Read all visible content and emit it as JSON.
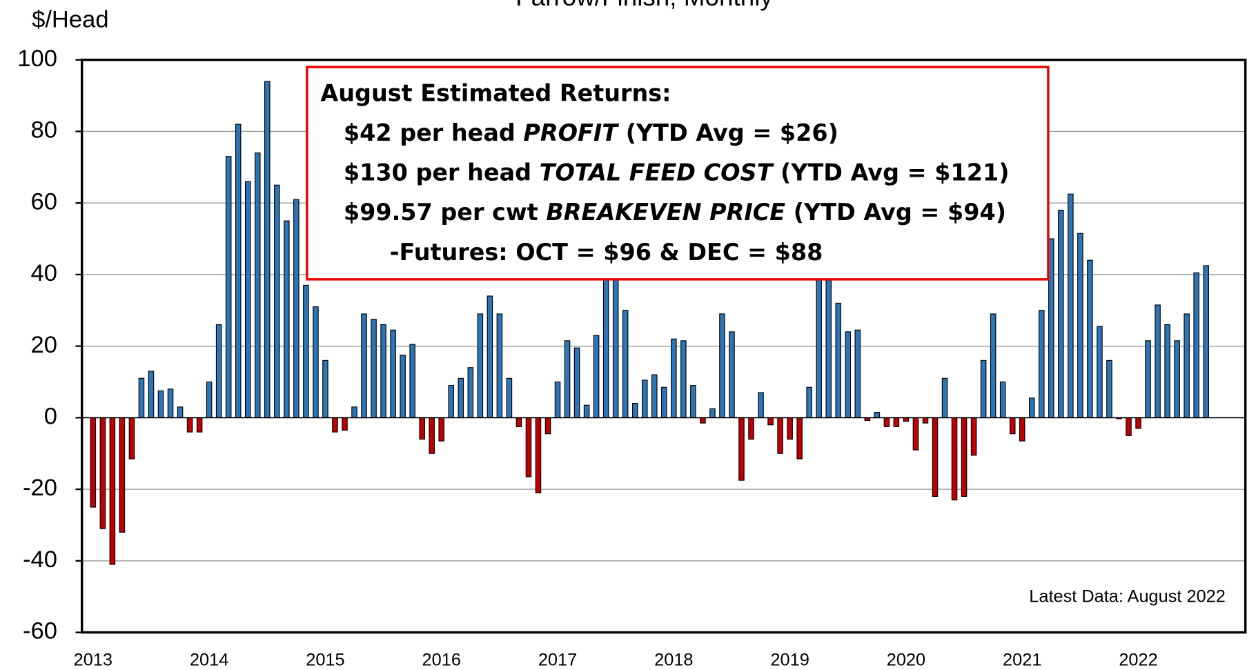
{
  "chart_data": {
    "type": "bar",
    "title": "Farrow/Finish, Monthly",
    "y_axis_label": "$/Head",
    "categories": [
      "2013",
      null,
      null,
      null,
      null,
      null,
      null,
      null,
      null,
      null,
      null,
      null,
      "2014",
      null,
      null,
      null,
      null,
      null,
      null,
      null,
      null,
      null,
      null,
      null,
      "2015",
      null,
      null,
      null,
      null,
      null,
      null,
      null,
      null,
      null,
      null,
      null,
      "2016",
      null,
      null,
      null,
      null,
      null,
      null,
      null,
      null,
      null,
      null,
      null,
      "2017",
      null,
      null,
      null,
      null,
      null,
      null,
      null,
      null,
      null,
      null,
      null,
      "2018",
      null,
      null,
      null,
      null,
      null,
      null,
      null,
      null,
      null,
      null,
      null,
      "2019",
      null,
      null,
      null,
      null,
      null,
      null,
      null,
      null,
      null,
      null,
      null,
      "2020",
      null,
      null,
      null,
      null,
      null,
      null,
      null,
      null,
      null,
      null,
      null,
      "2021",
      null,
      null,
      null,
      null,
      null,
      null,
      null,
      null,
      null,
      null,
      null,
      "2022",
      null,
      null,
      null,
      null,
      null,
      null,
      null
    ],
    "values": [
      -25,
      -31,
      -41,
      -32,
      -11.5,
      11,
      13,
      7.5,
      8,
      3,
      -4,
      -4,
      10,
      26,
      73,
      82,
      66,
      74,
      94,
      65,
      55,
      61,
      37,
      31,
      16,
      -4,
      -3.5,
      3,
      29,
      27.5,
      26,
      24.5,
      17.5,
      20.5,
      -6,
      -10,
      -6.5,
      9,
      11,
      14,
      29,
      34,
      29,
      11,
      -2.5,
      -16.5,
      -21,
      -4.5,
      10,
      21.5,
      19.5,
      3.5,
      23,
      45,
      50,
      30,
      4,
      10.5,
      12,
      8.5,
      22,
      21.5,
      9,
      -1.5,
      2.5,
      29,
      24,
      -17.5,
      -6,
      7,
      -2,
      -10,
      -6,
      -11.5,
      8.5,
      45,
      42,
      32,
      24,
      24.5,
      -0.8,
      1.5,
      -2.5,
      -2.5,
      -1,
      -9,
      -1.5,
      -22,
      11,
      -23,
      -22,
      -10.5,
      16,
      29,
      10,
      -4.5,
      -6.5,
      5.5,
      30,
      50,
      58,
      62.5,
      51.5,
      44,
      25.5,
      16,
      -0.3,
      -5,
      -3,
      21.5,
      31.5,
      26,
      21.5,
      29,
      40.5,
      42.5
    ],
    "positive_color": "#2e75b6",
    "negative_color": "#c00000",
    "ylim": [
      -60,
      100
    ],
    "yticks": [
      -60,
      -40,
      -20,
      0,
      20,
      40,
      60,
      80,
      100
    ],
    "grid": true,
    "annotation": {
      "lines": [
        [
          "August Estimated Returns:"
        ],
        [
          "$42 per head ",
          "PROFIT",
          " (YTD Avg = $26)"
        ],
        [
          "$130 per head ",
          "TOTAL FEED COST",
          " (YTD Avg = $121)"
        ],
        [
          "$99.57 per cwt ",
          "BREAKEVEN PRICE",
          " (YTD Avg = $94)"
        ],
        [
          "-Futures: OCT = $96 & DEC = $88"
        ]
      ]
    },
    "note": "Latest Data:  August 2022"
  }
}
